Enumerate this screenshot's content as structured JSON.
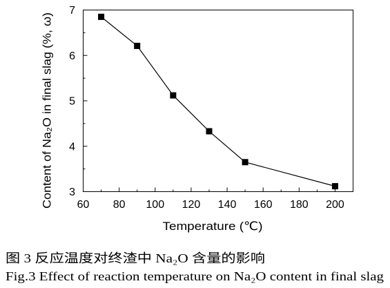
{
  "caption": {
    "cn": "图 3 反应温度对终渣中 Na₂O 含量的影响",
    "en": "Fig.3 Effect of reaction temperature on Na₂O content in final slag"
  },
  "chart_data": {
    "type": "line",
    "markers": true,
    "xlabel": "Temperature (℃)",
    "ylabel": "Content of Na₂O in final slag (%, ω)",
    "x": [
      70,
      90,
      110,
      130,
      150,
      200
    ],
    "y": [
      6.85,
      6.21,
      5.12,
      4.33,
      3.65,
      3.12
    ],
    "xlim": [
      60,
      210
    ],
    "ylim": [
      3,
      7
    ],
    "xticks": [
      60,
      80,
      100,
      120,
      140,
      160,
      180,
      200
    ],
    "yticks": [
      3,
      4,
      5,
      6,
      7
    ],
    "grid": false,
    "colors": {
      "line": "#000000",
      "marker": "#000000"
    }
  }
}
